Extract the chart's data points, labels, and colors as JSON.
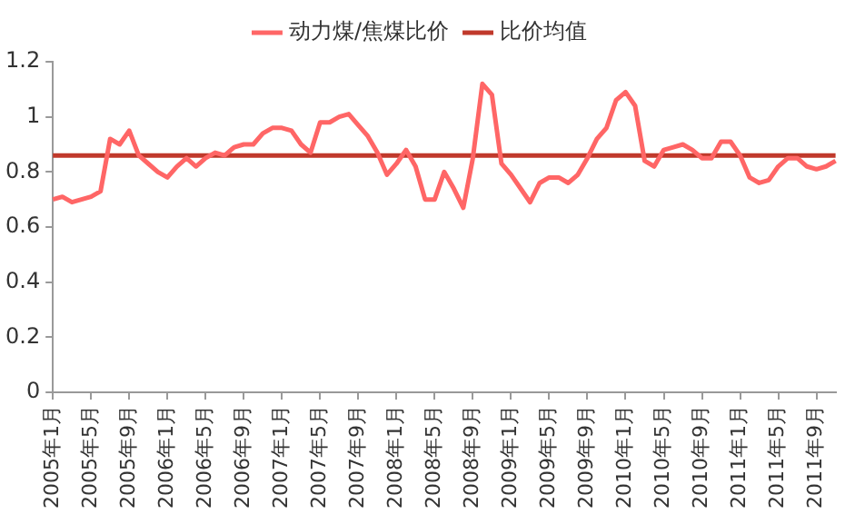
{
  "chart_data": {
    "type": "line",
    "categories": [
      "2005年1月",
      null,
      null,
      null,
      "2005年5月",
      null,
      null,
      null,
      "2005年9月",
      null,
      null,
      null,
      "2006年1月",
      null,
      null,
      null,
      "2006年5月",
      null,
      null,
      null,
      "2006年9月",
      null,
      null,
      null,
      "2007年1月",
      null,
      null,
      null,
      "2007年5月",
      null,
      null,
      null,
      "2007年9月",
      null,
      null,
      null,
      "2008年1月",
      null,
      null,
      null,
      "2008年5月",
      null,
      null,
      null,
      "2008年9月",
      null,
      null,
      null,
      "2009年1月",
      null,
      null,
      null,
      "2009年5月",
      null,
      null,
      null,
      "2009年9月",
      null,
      null,
      null,
      "2010年1月",
      null,
      null,
      null,
      "2010年5月",
      null,
      null,
      null,
      "2010年9月",
      null,
      null,
      null,
      "2011年1月",
      null,
      null,
      null,
      "2011年5月",
      null,
      null,
      null,
      "2011年9月",
      null,
      null
    ],
    "series": [
      {
        "name": "动力煤/焦煤比价",
        "color": "#ff6666",
        "values": [
          0.7,
          0.71,
          0.69,
          0.7,
          0.71,
          0.73,
          0.92,
          0.9,
          0.95,
          0.86,
          0.83,
          0.8,
          0.78,
          0.82,
          0.85,
          0.82,
          0.85,
          0.87,
          0.86,
          0.89,
          0.9,
          0.9,
          0.94,
          0.96,
          0.96,
          0.95,
          0.9,
          0.87,
          0.98,
          0.98,
          1.0,
          1.01,
          0.97,
          0.93,
          0.87,
          0.79,
          0.83,
          0.88,
          0.82,
          0.7,
          0.7,
          0.8,
          0.74,
          0.67,
          0.85,
          1.12,
          1.08,
          0.83,
          0.79,
          0.74,
          0.69,
          0.76,
          0.78,
          0.78,
          0.76,
          0.79,
          0.85,
          0.92,
          0.96,
          1.06,
          1.09,
          1.04,
          0.84,
          0.82,
          0.88,
          0.89,
          0.9,
          0.88,
          0.85,
          0.85,
          0.91,
          0.91,
          0.86,
          0.78,
          0.76,
          0.77,
          0.82,
          0.85,
          0.85,
          0.82,
          0.81,
          0.82,
          0.84
        ]
      },
      {
        "name": "比价均值",
        "color": "#c0392b",
        "values": [
          0.86,
          0.86,
          0.86,
          0.86,
          0.86,
          0.86,
          0.86,
          0.86,
          0.86,
          0.86,
          0.86,
          0.86,
          0.86,
          0.86,
          0.86,
          0.86,
          0.86,
          0.86,
          0.86,
          0.86,
          0.86,
          0.86,
          0.86,
          0.86,
          0.86,
          0.86,
          0.86,
          0.86,
          0.86,
          0.86,
          0.86,
          0.86,
          0.86,
          0.86,
          0.86,
          0.86,
          0.86,
          0.86,
          0.86,
          0.86,
          0.86,
          0.86,
          0.86,
          0.86,
          0.86,
          0.86,
          0.86,
          0.86,
          0.86,
          0.86,
          0.86,
          0.86,
          0.86,
          0.86,
          0.86,
          0.86,
          0.86,
          0.86,
          0.86,
          0.86,
          0.86,
          0.86,
          0.86,
          0.86,
          0.86,
          0.86,
          0.86,
          0.86,
          0.86,
          0.86,
          0.86,
          0.86,
          0.86,
          0.86,
          0.86,
          0.86,
          0.86,
          0.86,
          0.86,
          0.86,
          0.86,
          0.86,
          0.86
        ]
      }
    ],
    "ylim": [
      0,
      1.2
    ],
    "yticks": [
      0,
      0.2,
      0.4,
      0.6,
      0.8,
      1,
      1.2
    ],
    "grid": false,
    "legend": "top",
    "marker": "none",
    "line_style": "solid"
  }
}
